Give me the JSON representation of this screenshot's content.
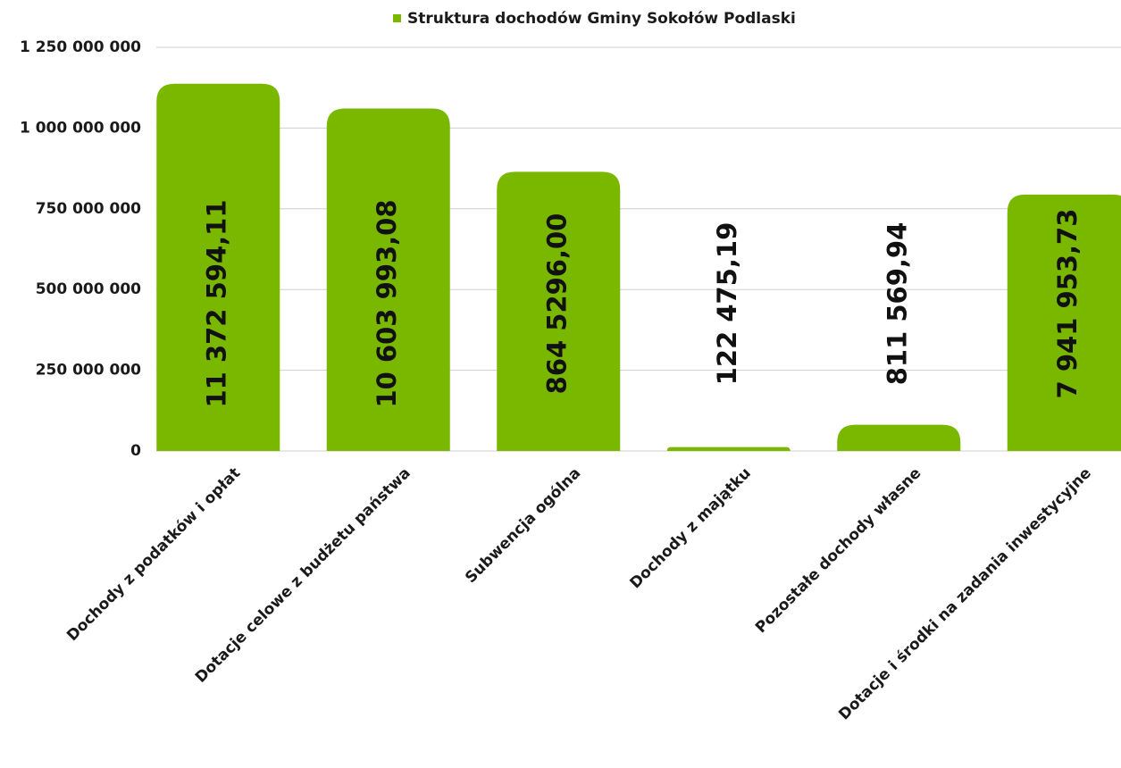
{
  "chart_data": {
    "type": "bar",
    "categories": [
      "Dochody z podatków i opłat",
      "Dotacje celowe z budżetu państwa",
      "Subwencja ogólna",
      "Dochody z majątku",
      "Pozostałe dochody własne",
      "Dotacje i środki na zadania inwestycyjne"
    ],
    "series": [
      {
        "name": "Struktura dochodów Gminy Sokołów Podlaski",
        "color": "#7ab800",
        "values": [
          1137259411,
          1060399308,
          864529600,
          12247519,
          81156994,
          794195373
        ],
        "value_labels": [
          "11 372 594,11",
          "10 603 993,08",
          "864 5296,00",
          "122 475,19",
          "811 569,94",
          "7 941 953,73"
        ]
      }
    ],
    "ylim": [
      0,
      1250000000
    ],
    "yticks": [
      0,
      {
        "value": 250000000,
        "label": "250 000 000"
      },
      {
        "value": 500000000,
        "label": "500 000 000"
      },
      {
        "value": 750000000,
        "label": "750 000 000"
      },
      {
        "value": 1000000000,
        "label": "1 000 000 000"
      },
      {
        "value": 1250000000,
        "label": "1 250 000 000"
      }
    ],
    "grid": true,
    "legend": "top"
  }
}
